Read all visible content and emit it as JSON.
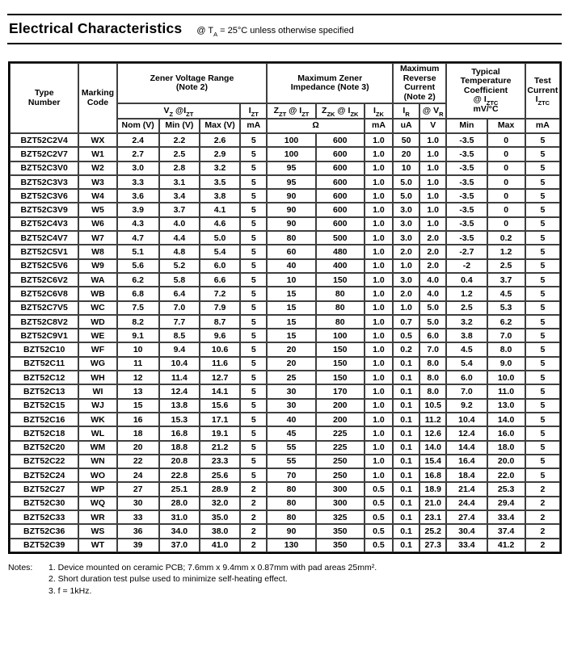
{
  "title": {
    "text": "Electrical Characteristics",
    "condition": "@ T~A~ = 25°C unless otherwise specified"
  },
  "table": {
    "header": {
      "type_number": "Type\nNumber",
      "marking_code": "Marking\nCode",
      "zener_voltage_range": "Zener Voltage Range\n(Note 2)",
      "max_zener_impedance": "Maximum Zener\nImpedance (Note 3)",
      "max_reverse_current": "Maximum\nReverse\nCurrent\n(Note 2)",
      "temp_coefficient": "Typical\nTemperature\nCoefficient\n@ I~ZTC~\nmV/°C",
      "test_current": "Test\nCurrent\nI~ZTC~",
      "vz_at_izt": "V~Z~ @I~ZT~",
      "izt": "I~ZT~",
      "zzt_at_izt": "Z~ZT~ @ I~ZT~",
      "zzk_at_izk": "Z~ZK~ @ I~ZK~",
      "izk": "I~ZK~",
      "ir": "I~R~",
      "at_vr": "@ V~R~",
      "units": [
        "Nom (V)",
        "Min (V)",
        "Max (V)",
        "mA",
        "Ω",
        "mA",
        "uA",
        "V",
        "Min",
        "Max",
        "mA"
      ]
    },
    "column_keys": [
      "type-number",
      "marking-code",
      "vz-nom",
      "vz-min",
      "vz-max",
      "izt-ma",
      "zzt-ohm",
      "zzk-ohm",
      "izk-ma",
      "ir-ua",
      "vr-v",
      "tc-min",
      "tc-max",
      "iztc-ma"
    ],
    "rows": [
      [
        "BZT52C2V4",
        "WX",
        "2.4",
        "2.2",
        "2.6",
        "5",
        "100",
        "600",
        "1.0",
        "50",
        "1.0",
        "-3.5",
        "0",
        "5"
      ],
      [
        "BZT52C2V7",
        "W1",
        "2.7",
        "2.5",
        "2.9",
        "5",
        "100",
        "600",
        "1.0",
        "20",
        "1.0",
        "-3.5",
        "0",
        "5"
      ],
      [
        "BZT52C3V0",
        "W2",
        "3.0",
        "2.8",
        "3.2",
        "5",
        "95",
        "600",
        "1.0",
        "10",
        "1.0",
        "-3.5",
        "0",
        "5"
      ],
      [
        "BZT52C3V3",
        "W3",
        "3.3",
        "3.1",
        "3.5",
        "5",
        "95",
        "600",
        "1.0",
        "5.0",
        "1.0",
        "-3.5",
        "0",
        "5"
      ],
      [
        "BZT52C3V6",
        "W4",
        "3.6",
        "3.4",
        "3.8",
        "5",
        "90",
        "600",
        "1.0",
        "5.0",
        "1.0",
        "-3.5",
        "0",
        "5"
      ],
      [
        "BZT52C3V9",
        "W5",
        "3.9",
        "3.7",
        "4.1",
        "5",
        "90",
        "600",
        "1.0",
        "3.0",
        "1.0",
        "-3.5",
        "0",
        "5"
      ],
      [
        "BZT52C4V3",
        "W6",
        "4.3",
        "4.0",
        "4.6",
        "5",
        "90",
        "600",
        "1.0",
        "3.0",
        "1.0",
        "-3.5",
        "0",
        "5"
      ],
      [
        "BZT52C4V7",
        "W7",
        "4.7",
        "4.4",
        "5.0",
        "5",
        "80",
        "500",
        "1.0",
        "3.0",
        "2.0",
        "-3.5",
        "0.2",
        "5"
      ],
      [
        "BZT52C5V1",
        "W8",
        "5.1",
        "4.8",
        "5.4",
        "5",
        "60",
        "480",
        "1.0",
        "2.0",
        "2.0",
        "-2.7",
        "1.2",
        "5"
      ],
      [
        "BZT52C5V6",
        "W9",
        "5.6",
        "5.2",
        "6.0",
        "5",
        "40",
        "400",
        "1.0",
        "1.0",
        "2.0",
        "-2",
        "2.5",
        "5"
      ],
      [
        "BZT52C6V2",
        "WA",
        "6.2",
        "5.8",
        "6.6",
        "5",
        "10",
        "150",
        "1.0",
        "3.0",
        "4.0",
        "0.4",
        "3.7",
        "5"
      ],
      [
        "BZT52C6V8",
        "WB",
        "6.8",
        "6.4",
        "7.2",
        "5",
        "15",
        "80",
        "1.0",
        "2.0",
        "4.0",
        "1.2",
        "4.5",
        "5"
      ],
      [
        "BZT52C7V5",
        "WC",
        "7.5",
        "7.0",
        "7.9",
        "5",
        "15",
        "80",
        "1.0",
        "1.0",
        "5.0",
        "2.5",
        "5.3",
        "5"
      ],
      [
        "BZT52C8V2",
        "WD",
        "8.2",
        "7.7",
        "8.7",
        "5",
        "15",
        "80",
        "1.0",
        "0.7",
        "5.0",
        "3.2",
        "6.2",
        "5"
      ],
      [
        "BZT52C9V1",
        "WE",
        "9.1",
        "8.5",
        "9.6",
        "5",
        "15",
        "100",
        "1.0",
        "0.5",
        "6.0",
        "3.8",
        "7.0",
        "5"
      ],
      [
        "BZT52C10",
        "WF",
        "10",
        "9.4",
        "10.6",
        "5",
        "20",
        "150",
        "1.0",
        "0.2",
        "7.0",
        "4.5",
        "8.0",
        "5"
      ],
      [
        "BZT52C11",
        "WG",
        "11",
        "10.4",
        "11.6",
        "5",
        "20",
        "150",
        "1.0",
        "0.1",
        "8.0",
        "5.4",
        "9.0",
        "5"
      ],
      [
        "BZT52C12",
        "WH",
        "12",
        "11.4",
        "12.7",
        "5",
        "25",
        "150",
        "1.0",
        "0.1",
        "8.0",
        "6.0",
        "10.0",
        "5"
      ],
      [
        "BZT52C13",
        "WI",
        "13",
        "12.4",
        "14.1",
        "5",
        "30",
        "170",
        "1.0",
        "0.1",
        "8.0",
        "7.0",
        "11.0",
        "5"
      ],
      [
        "BZT52C15",
        "WJ",
        "15",
        "13.8",
        "15.6",
        "5",
        "30",
        "200",
        "1.0",
        "0.1",
        "10.5",
        "9.2",
        "13.0",
        "5"
      ],
      [
        "BZT52C16",
        "WK",
        "16",
        "15.3",
        "17.1",
        "5",
        "40",
        "200",
        "1.0",
        "0.1",
        "11.2",
        "10.4",
        "14.0",
        "5"
      ],
      [
        "BZT52C18",
        "WL",
        "18",
        "16.8",
        "19.1",
        "5",
        "45",
        "225",
        "1.0",
        "0.1",
        "12.6",
        "12.4",
        "16.0",
        "5"
      ],
      [
        "BZT52C20",
        "WM",
        "20",
        "18.8",
        "21.2",
        "5",
        "55",
        "225",
        "1.0",
        "0.1",
        "14.0",
        "14.4",
        "18.0",
        "5"
      ],
      [
        "BZT52C22",
        "WN",
        "22",
        "20.8",
        "23.3",
        "5",
        "55",
        "250",
        "1.0",
        "0.1",
        "15.4",
        "16.4",
        "20.0",
        "5"
      ],
      [
        "BZT52C24",
        "WO",
        "24",
        "22.8",
        "25.6",
        "5",
        "70",
        "250",
        "1.0",
        "0.1",
        "16.8",
        "18.4",
        "22.0",
        "5"
      ],
      [
        "BZT52C27",
        "WP",
        "27",
        "25.1",
        "28.9",
        "2",
        "80",
        "300",
        "0.5",
        "0.1",
        "18.9",
        "21.4",
        "25.3",
        "2"
      ],
      [
        "BZT52C30",
        "WQ",
        "30",
        "28.0",
        "32.0",
        "2",
        "80",
        "300",
        "0.5",
        "0.1",
        "21.0",
        "24.4",
        "29.4",
        "2"
      ],
      [
        "BZT52C33",
        "WR",
        "33",
        "31.0",
        "35.0",
        "2",
        "80",
        "325",
        "0.5",
        "0.1",
        "23.1",
        "27.4",
        "33.4",
        "2"
      ],
      [
        "BZT52C36",
        "WS",
        "36",
        "34.0",
        "38.0",
        "2",
        "90",
        "350",
        "0.5",
        "0.1",
        "25.2",
        "30.4",
        "37.4",
        "2"
      ],
      [
        "BZT52C39",
        "WT",
        "39",
        "37.0",
        "41.0",
        "2",
        "130",
        "350",
        "0.5",
        "0.1",
        "27.3",
        "33.4",
        "41.2",
        "2"
      ]
    ]
  },
  "notes": {
    "label": "Notes:",
    "items": [
      "1. Device mounted on ceramic PCB; 7.6mm x 9.4mm x 0.87mm with pad areas 25mm².",
      "2. Short duration test pulse used to minimize self-heating effect.",
      "3. f = 1kHz."
    ]
  }
}
